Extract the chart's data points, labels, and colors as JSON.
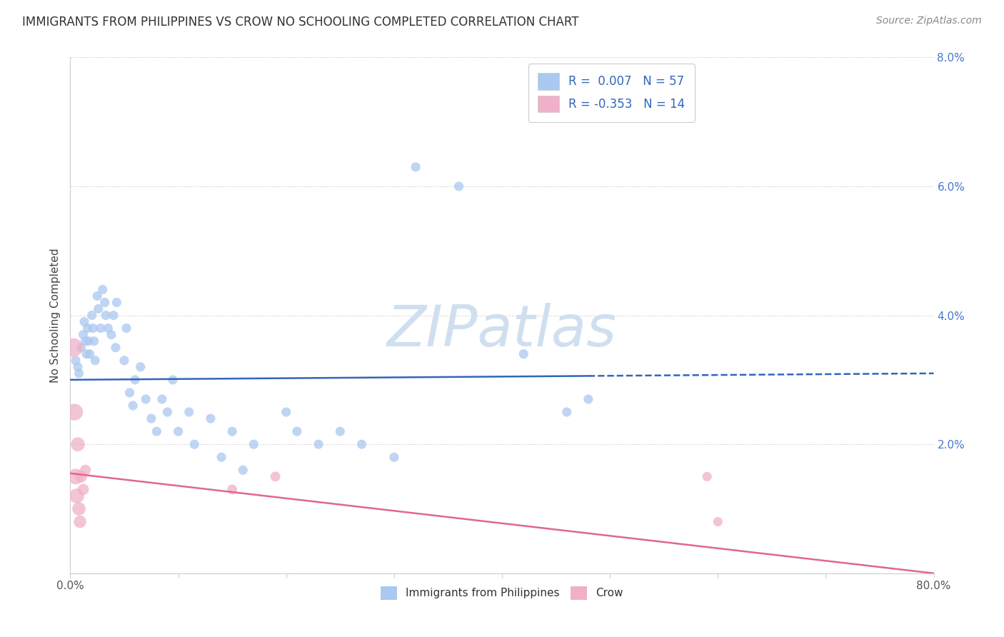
{
  "title": "IMMIGRANTS FROM PHILIPPINES VS CROW NO SCHOOLING COMPLETED CORRELATION CHART",
  "source": "Source: ZipAtlas.com",
  "ylabel": "No Schooling Completed",
  "legend_label1": "Immigrants from Philippines",
  "legend_label2": "Crow",
  "r1": 0.007,
  "n1": 57,
  "r2": -0.353,
  "n2": 14,
  "xlim": [
    0.0,
    0.8
  ],
  "ylim": [
    0.0,
    0.08
  ],
  "x_ticks": [
    0.0,
    0.1,
    0.2,
    0.3,
    0.4,
    0.5,
    0.6,
    0.7,
    0.8
  ],
  "x_tick_labels": [
    "0.0%",
    "",
    "",
    "",
    "",
    "",
    "",
    "",
    "80.0%"
  ],
  "y_ticks": [
    0.0,
    0.02,
    0.04,
    0.06,
    0.08
  ],
  "y_tick_labels": [
    "",
    "2.0%",
    "4.0%",
    "6.0%",
    "8.0%"
  ],
  "color_blue": "#aac8f0",
  "color_blue_line": "#3366bb",
  "color_pink": "#f0b0c8",
  "color_pink_line": "#e06888",
  "watermark_color": "#d0dff0",
  "blue_dots": [
    [
      0.005,
      0.033
    ],
    [
      0.007,
      0.032
    ],
    [
      0.008,
      0.031
    ],
    [
      0.01,
      0.035
    ],
    [
      0.012,
      0.037
    ],
    [
      0.013,
      0.039
    ],
    [
      0.014,
      0.036
    ],
    [
      0.015,
      0.034
    ],
    [
      0.016,
      0.038
    ],
    [
      0.017,
      0.036
    ],
    [
      0.018,
      0.034
    ],
    [
      0.02,
      0.04
    ],
    [
      0.021,
      0.038
    ],
    [
      0.022,
      0.036
    ],
    [
      0.023,
      0.033
    ],
    [
      0.025,
      0.043
    ],
    [
      0.026,
      0.041
    ],
    [
      0.028,
      0.038
    ],
    [
      0.03,
      0.044
    ],
    [
      0.032,
      0.042
    ],
    [
      0.033,
      0.04
    ],
    [
      0.035,
      0.038
    ],
    [
      0.038,
      0.037
    ],
    [
      0.04,
      0.04
    ],
    [
      0.042,
      0.035
    ],
    [
      0.043,
      0.042
    ],
    [
      0.05,
      0.033
    ],
    [
      0.052,
      0.038
    ],
    [
      0.055,
      0.028
    ],
    [
      0.058,
      0.026
    ],
    [
      0.06,
      0.03
    ],
    [
      0.065,
      0.032
    ],
    [
      0.07,
      0.027
    ],
    [
      0.075,
      0.024
    ],
    [
      0.08,
      0.022
    ],
    [
      0.085,
      0.027
    ],
    [
      0.09,
      0.025
    ],
    [
      0.095,
      0.03
    ],
    [
      0.1,
      0.022
    ],
    [
      0.11,
      0.025
    ],
    [
      0.115,
      0.02
    ],
    [
      0.13,
      0.024
    ],
    [
      0.14,
      0.018
    ],
    [
      0.15,
      0.022
    ],
    [
      0.16,
      0.016
    ],
    [
      0.17,
      0.02
    ],
    [
      0.2,
      0.025
    ],
    [
      0.21,
      0.022
    ],
    [
      0.23,
      0.02
    ],
    [
      0.25,
      0.022
    ],
    [
      0.27,
      0.02
    ],
    [
      0.3,
      0.018
    ],
    [
      0.32,
      0.063
    ],
    [
      0.36,
      0.06
    ],
    [
      0.42,
      0.034
    ],
    [
      0.46,
      0.025
    ],
    [
      0.48,
      0.027
    ]
  ],
  "pink_dots": [
    [
      0.003,
      0.035
    ],
    [
      0.004,
      0.025
    ],
    [
      0.005,
      0.015
    ],
    [
      0.006,
      0.012
    ],
    [
      0.007,
      0.02
    ],
    [
      0.008,
      0.01
    ],
    [
      0.009,
      0.008
    ],
    [
      0.01,
      0.015
    ],
    [
      0.012,
      0.013
    ],
    [
      0.014,
      0.016
    ],
    [
      0.15,
      0.013
    ],
    [
      0.19,
      0.015
    ],
    [
      0.59,
      0.015
    ],
    [
      0.6,
      0.008
    ]
  ],
  "pink_dot_sizes": [
    350,
    280,
    250,
    220,
    200,
    180,
    160,
    150,
    130,
    120,
    100,
    100,
    90,
    90
  ],
  "blue_dot_size": 90,
  "blue_line_solid_end": 0.48,
  "blue_line_y0": 0.03,
  "blue_line_y1": 0.031,
  "pink_line_y0": 0.0155,
  "pink_line_y1": 0.0
}
